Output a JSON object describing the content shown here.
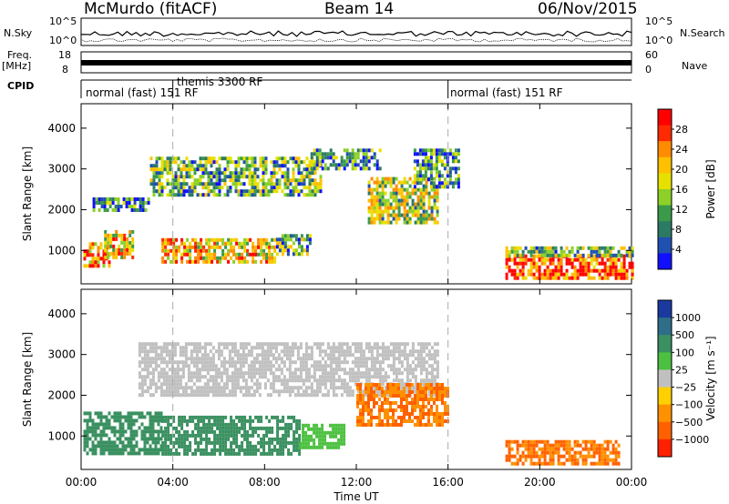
{
  "header": {
    "station": "McMurdo (fitACF)",
    "beam": "Beam 14",
    "date": "06/Nov/2015"
  },
  "top_panels": {
    "nsky_label": "N.Sky",
    "nsky_ticks": [
      "10^5",
      "10^0"
    ],
    "nsearch_label": "N.Search",
    "freq_label_1": "Freq.",
    "freq_label_2": "[MHz]",
    "freq_ticks": [
      "18",
      "8"
    ],
    "nave_ticks": [
      "60",
      "0"
    ],
    "nave_label": "Nave",
    "cpid_label": "CPID",
    "cpid_modes": [
      {
        "label": "normal (fast) 151 RF",
        "start_hour": 0,
        "end_hour": 4
      },
      {
        "label": "themis 3300 RF",
        "start_hour": 4,
        "end_hour": 16
      },
      {
        "label": "normal (fast) 151 RF",
        "start_hour": 16,
        "end_hour": 24
      }
    ]
  },
  "chart_data": [
    {
      "type": "heatmap",
      "name": "power",
      "xlabel": "Time UT",
      "ylabel": "Slant Range [km]",
      "x_ticks": [
        "00:00",
        "04:00",
        "08:00",
        "12:00",
        "16:00",
        "20:00",
        "00:00"
      ],
      "xlim_hours": [
        0,
        24
      ],
      "y_ticks": [
        1000,
        2000,
        3000,
        4000
      ],
      "ylim": [
        180,
        4600
      ],
      "colorbar_label": "Power [dB]",
      "colorbar_ticks": [
        "28",
        "24",
        "20",
        "16",
        "12",
        "8",
        "4"
      ],
      "colorbar_colors": [
        "#ff0000",
        "#ff2a00",
        "#ff8c00",
        "#ffc000",
        "#e6e000",
        "#8cd028",
        "#3a9a4a",
        "#2c7a64",
        "#2050b0",
        "#1010ff"
      ],
      "echo_regions": [
        {
          "t0": 0.1,
          "t1": 1.2,
          "r0": 600,
          "r1": 1200,
          "level": 24
        },
        {
          "t0": 1.0,
          "t1": 2.2,
          "r0": 800,
          "r1": 1500,
          "level": 20
        },
        {
          "t0": 3.5,
          "t1": 8.5,
          "r0": 700,
          "r1": 1300,
          "level": 20
        },
        {
          "t0": 8.5,
          "t1": 10.0,
          "r0": 900,
          "r1": 1400,
          "level": 12
        },
        {
          "t0": 0.5,
          "t1": 3.0,
          "r0": 2000,
          "r1": 2300,
          "level": 10
        },
        {
          "t0": 3.0,
          "t1": 10.5,
          "r0": 2400,
          "r1": 3300,
          "level": 12
        },
        {
          "t0": 10.0,
          "t1": 13.0,
          "r0": 3000,
          "r1": 3500,
          "level": 10
        },
        {
          "t0": 12.5,
          "t1": 15.5,
          "r0": 1700,
          "r1": 2800,
          "level": 16
        },
        {
          "t0": 14.5,
          "t1": 16.5,
          "r0": 2600,
          "r1": 3500,
          "level": 10
        },
        {
          "t0": 18.5,
          "t1": 24.0,
          "r0": 300,
          "r1": 900,
          "level": 28
        },
        {
          "t0": 18.5,
          "t1": 24.0,
          "r0": 900,
          "r1": 1100,
          "level": 14
        }
      ]
    },
    {
      "type": "heatmap",
      "name": "velocity",
      "xlabel": "Time UT",
      "ylabel": "Slant Range [km]",
      "x_ticks": [
        "00:00",
        "04:00",
        "08:00",
        "12:00",
        "16:00",
        "20:00",
        "00:00"
      ],
      "xlim_hours": [
        0,
        24
      ],
      "y_ticks": [
        1000,
        2000,
        3000,
        4000
      ],
      "ylim": [
        180,
        4600
      ],
      "colorbar_label": "Velocity [m s⁻¹]",
      "colorbar_ticks": [
        "1000",
        "500",
        "100",
        "25",
        "−25",
        "−100",
        "−500",
        "−1000"
      ],
      "colorbar_colors": [
        "#1a3aa0",
        "#2e6e88",
        "#3a9060",
        "#4cc040",
        "#c0c0c0",
        "#ffd000",
        "#ff9000",
        "#ff6000",
        "#ff2000"
      ],
      "echo_regions": [
        {
          "t0": 0.1,
          "t1": 3.5,
          "r0": 600,
          "r1": 1600,
          "level": 300
        },
        {
          "t0": 3.5,
          "t1": 9.5,
          "r0": 600,
          "r1": 1500,
          "level": 300
        },
        {
          "t0": 9.5,
          "t1": 11.5,
          "r0": 700,
          "r1": 1300,
          "level": 60
        },
        {
          "t0": 2.5,
          "t1": 15.5,
          "r0": 2000,
          "r1": 3300,
          "level": 0
        },
        {
          "t0": 12.0,
          "t1": 16.0,
          "r0": 1300,
          "r1": 2300,
          "level": -300
        },
        {
          "t0": 18.5,
          "t1": 23.5,
          "r0": 300,
          "r1": 900,
          "level": -300
        }
      ]
    }
  ]
}
